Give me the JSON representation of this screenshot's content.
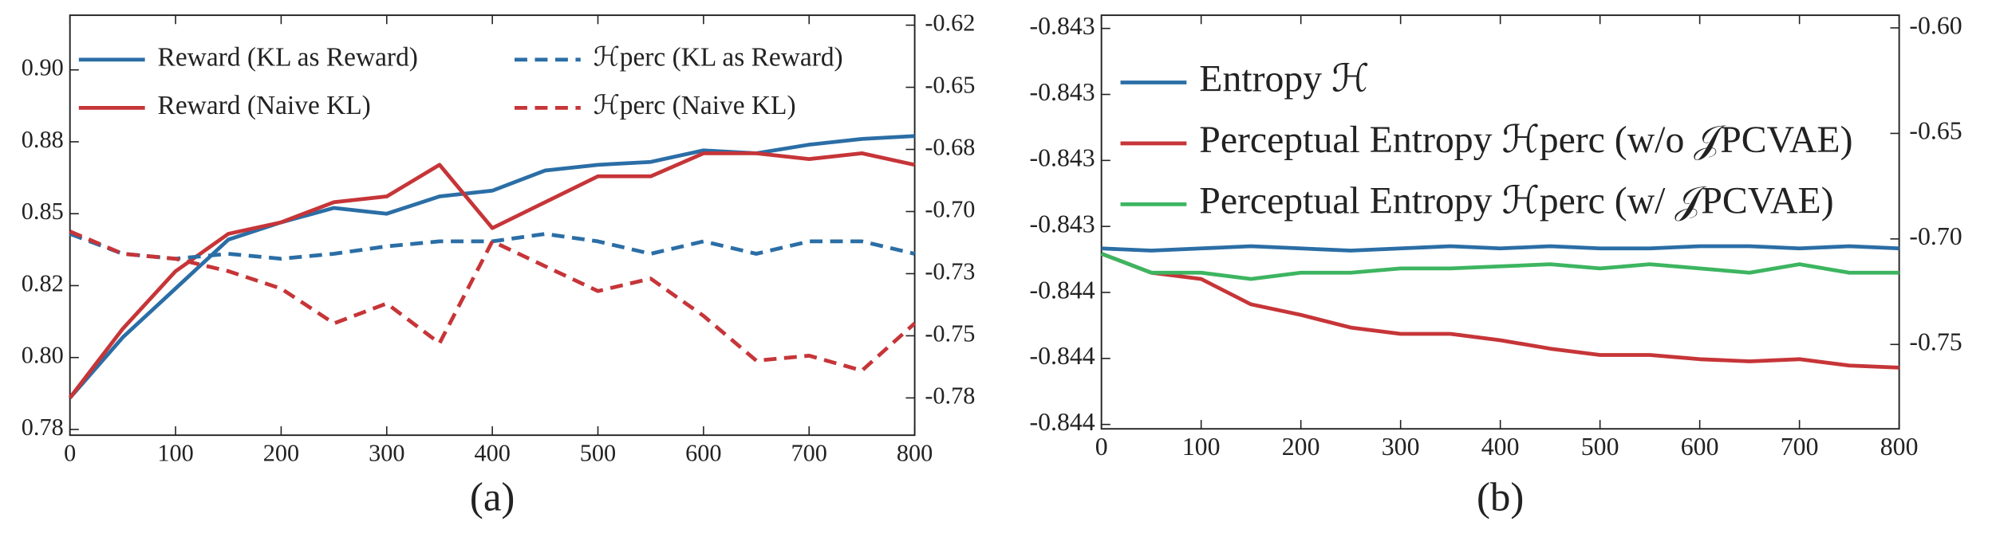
{
  "chart_data": [
    {
      "type": "line",
      "caption": "(a)",
      "legend": "upper left",
      "legend_ncol": 2,
      "x": [
        0,
        50,
        100,
        150,
        200,
        250,
        300,
        350,
        400,
        450,
        500,
        550,
        600,
        650,
        700,
        750,
        800
      ],
      "xlim": [
        0,
        800
      ],
      "xticks": [
        0,
        100,
        200,
        300,
        400,
        500,
        600,
        700,
        800
      ],
      "ylim": [
        0.773,
        0.919
      ],
      "yticks": [
        {
          "value": 0.775,
          "label": "0.78"
        },
        {
          "value": 0.8,
          "label": "0.80"
        },
        {
          "value": 0.825,
          "label": "0.82"
        },
        {
          "value": 0.85,
          "label": "0.85"
        },
        {
          "value": 0.875,
          "label": "0.88"
        },
        {
          "value": 0.9,
          "label": "0.90"
        }
      ],
      "y2lim": [
        -0.79,
        -0.621
      ],
      "y2ticks": [
        {
          "value": -0.625,
          "label": "-0.62"
        },
        -0.65,
        {
          "value": -0.675,
          "label": "-0.68"
        },
        {
          "value": -0.7,
          "label": "-0.70"
        },
        {
          "value": -0.725,
          "label": "-0.73"
        },
        -0.75,
        {
          "value": -0.775,
          "label": "-0.78"
        }
      ],
      "series": [
        {
          "name": "Reward (KL as Reward)",
          "color": "#2b6ea6",
          "linestyle": "solid",
          "values": [
            0.786,
            0.807,
            0.824,
            0.841,
            0.847,
            0.852,
            0.85,
            0.856,
            0.858,
            0.865,
            0.867,
            0.868,
            0.872,
            0.871,
            0.874,
            0.876,
            0.877
          ]
        },
        {
          "name": "Reward (Naive KL)",
          "color": "#c63538",
          "linestyle": "solid",
          "values": [
            0.786,
            0.81,
            0.83,
            0.843,
            0.847,
            0.854,
            0.856,
            0.867,
            0.845,
            0.854,
            0.863,
            0.863,
            0.871,
            0.871,
            0.869,
            0.871,
            0.867
          ]
        },
        {
          "name": "ℋperc (KL as Reward)",
          "color": "#2b6ea6",
          "linestyle": "dashed",
          "axis": "y2",
          "values": [
            -0.709,
            -0.717,
            -0.719,
            -0.717,
            -0.719,
            -0.717,
            -0.714,
            -0.712,
            -0.712,
            -0.709,
            -0.712,
            -0.717,
            -0.712,
            -0.717,
            -0.712,
            -0.712,
            -0.717
          ]
        },
        {
          "name": "ℋperc (Naive KL)",
          "color": "#c63538",
          "linestyle": "dashed",
          "axis": "y2",
          "values": [
            -0.708,
            -0.717,
            -0.719,
            -0.724,
            -0.731,
            -0.745,
            -0.737,
            -0.753,
            -0.712,
            -0.722,
            -0.732,
            -0.727,
            -0.742,
            -0.76,
            -0.758,
            -0.764,
            -0.745
          ]
        }
      ]
    },
    {
      "type": "line",
      "caption": "(b)",
      "legend": "upper left",
      "legend_ncol": 1,
      "x": [
        0,
        50,
        100,
        150,
        200,
        250,
        300,
        350,
        400,
        450,
        500,
        550,
        600,
        650,
        700,
        750,
        800
      ],
      "xlim": [
        0,
        800
      ],
      "xticks": [
        0,
        100,
        200,
        300,
        400,
        500,
        600,
        700,
        800
      ],
      "ylim": [
        -0.84434,
        -0.84246
      ],
      "yticks": [
        {
          "value": -0.84432,
          "label": "-0.844"
        },
        {
          "value": -0.84402,
          "label": "-0.844"
        },
        {
          "value": -0.84372,
          "label": "-0.844"
        },
        {
          "value": -0.84342,
          "label": "-0.843"
        },
        {
          "value": -0.84312,
          "label": "-0.843"
        },
        {
          "value": -0.84282,
          "label": "-0.843"
        },
        {
          "value": -0.84252,
          "label": "-0.843"
        }
      ],
      "y2lim": [
        -0.79,
        -0.594
      ],
      "y2ticks": [
        {
          "value": -0.6,
          "label": "-0.60"
        },
        -0.65,
        {
          "value": -0.7,
          "label": "-0.70"
        },
        -0.75
      ],
      "series": [
        {
          "name": "Entropy ℋ",
          "color": "#2b6ea6",
          "linestyle": "solid",
          "values": [
            -0.84352,
            -0.84353,
            -0.84352,
            -0.84351,
            -0.84352,
            -0.84353,
            -0.84352,
            -0.84351,
            -0.84352,
            -0.84351,
            -0.84352,
            -0.84352,
            -0.84351,
            -0.84351,
            -0.84352,
            -0.84351,
            -0.84352
          ]
        },
        {
          "name": "Perceptual Entropy ℋperc (w/o 𝒥PCVAE)",
          "color": "#c63538",
          "linestyle": "solid",
          "axis": "y2",
          "values": [
            -0.707,
            -0.716,
            -0.719,
            -0.731,
            -0.736,
            -0.742,
            -0.745,
            -0.745,
            -0.748,
            -0.752,
            -0.755,
            -0.755,
            -0.757,
            -0.758,
            -0.757,
            -0.76,
            -0.761
          ]
        },
        {
          "name": "Perceptual Entropy ℋperc (w/ 𝒥PCVAE)",
          "color": "#3db560",
          "linestyle": "solid",
          "axis": "y2",
          "values": [
            -0.707,
            -0.716,
            -0.716,
            -0.719,
            -0.716,
            -0.716,
            -0.714,
            -0.714,
            -0.713,
            -0.712,
            -0.714,
            -0.712,
            -0.714,
            -0.716,
            -0.712,
            -0.716,
            -0.716
          ]
        }
      ]
    }
  ]
}
